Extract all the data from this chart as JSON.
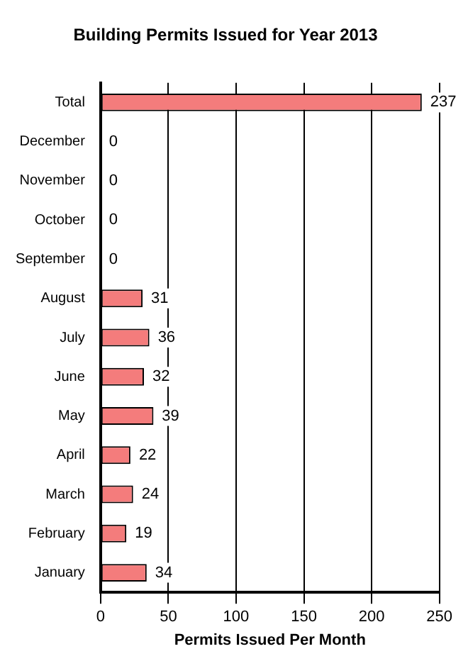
{
  "chart_data": {
    "type": "bar",
    "orientation": "horizontal",
    "title": "Building Permits Issued for Year 2013",
    "xlabel": "Permits Issued Per Month",
    "categories": [
      "Total",
      "December",
      "November",
      "October",
      "September",
      "August",
      "July",
      "June",
      "May",
      "April",
      "March",
      "February",
      "January"
    ],
    "values": [
      237,
      0,
      0,
      0,
      0,
      31,
      36,
      32,
      39,
      22,
      24,
      19,
      34
    ],
    "color": "#f47c7c",
    "xlim": [
      0,
      250
    ],
    "xticks": [
      0,
      50,
      100,
      150,
      200,
      250
    ],
    "grid": "x",
    "data_labels": true,
    "legend": false
  }
}
